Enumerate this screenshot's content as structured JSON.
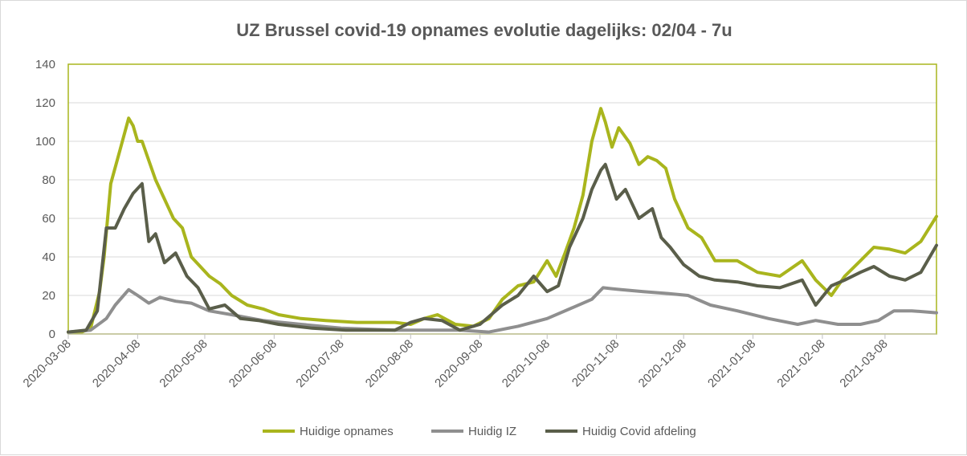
{
  "chart_data": {
    "type": "line",
    "title": "UZ Brussel covid-19 opnames evolutie dagelijks: 02/04 - 7u",
    "xlabel": "",
    "ylabel": "",
    "ylim": [
      0,
      140
    ],
    "yticks": [
      "0",
      "20",
      "40",
      "60",
      "80",
      "100",
      "120",
      "140"
    ],
    "xlim": [
      "2020-03-08",
      "2021-03-31"
    ],
    "xticks": [
      "2020-03-08",
      "2020-04-08",
      "2020-05-08",
      "2020-06-08",
      "2020-07-08",
      "2020-08-08",
      "2020-09-08",
      "2020-10-08",
      "2020-11-08",
      "2020-12-08",
      "2021-01-08",
      "2021-02-08",
      "2021-03-08"
    ],
    "grid": "horizontal",
    "legend_position": "bottom",
    "series": [
      {
        "name": "Huidige opnames",
        "color": "#a9b51d",
        "x": [
          "2020-03-08",
          "2020-03-14",
          "2020-03-18",
          "2020-03-22",
          "2020-03-24",
          "2020-03-27",
          "2020-03-31",
          "2020-04-04",
          "2020-04-06",
          "2020-04-08",
          "2020-04-10",
          "2020-04-13",
          "2020-04-16",
          "2020-04-20",
          "2020-04-24",
          "2020-04-28",
          "2020-05-02",
          "2020-05-06",
          "2020-05-10",
          "2020-05-15",
          "2020-05-20",
          "2020-05-27",
          "2020-06-03",
          "2020-06-10",
          "2020-06-20",
          "2020-07-01",
          "2020-07-15",
          "2020-08-01",
          "2020-08-08",
          "2020-08-14",
          "2020-08-20",
          "2020-08-28",
          "2020-09-05",
          "2020-09-12",
          "2020-09-18",
          "2020-09-25",
          "2020-10-02",
          "2020-10-08",
          "2020-10-12",
          "2020-10-16",
          "2020-10-20",
          "2020-10-24",
          "2020-10-28",
          "2020-11-01",
          "2020-11-03",
          "2020-11-06",
          "2020-11-09",
          "2020-11-14",
          "2020-11-18",
          "2020-11-22",
          "2020-11-26",
          "2020-11-30",
          "2020-12-04",
          "2020-12-10",
          "2020-12-16",
          "2020-12-22",
          "2021-01-01",
          "2021-01-10",
          "2021-01-20",
          "2021-01-30",
          "2021-02-05",
          "2021-02-12",
          "2021-02-18",
          "2021-02-25",
          "2021-03-03",
          "2021-03-10",
          "2021-03-17",
          "2021-03-24",
          "2021-03-31"
        ],
        "values": [
          1,
          1,
          3,
          22,
          40,
          78,
          95,
          112,
          108,
          100,
          100,
          90,
          80,
          70,
          60,
          55,
          40,
          35,
          30,
          26,
          20,
          15,
          13,
          10,
          8,
          7,
          6,
          6,
          5,
          8,
          10,
          5,
          4,
          8,
          18,
          25,
          27,
          38,
          30,
          42,
          55,
          72,
          100,
          117,
          110,
          97,
          107,
          99,
          88,
          92,
          90,
          86,
          70,
          55,
          50,
          38,
          38,
          32,
          30,
          38,
          28,
          20,
          30,
          38,
          45,
          44,
          42,
          48,
          61
        ]
      },
      {
        "name": "Huidig IZ",
        "color": "#8f8f8f",
        "x": [
          "2020-03-08",
          "2020-03-18",
          "2020-03-25",
          "2020-03-29",
          "2020-04-04",
          "2020-04-08",
          "2020-04-13",
          "2020-04-18",
          "2020-04-25",
          "2020-05-02",
          "2020-05-10",
          "2020-05-20",
          "2020-06-03",
          "2020-06-20",
          "2020-07-08",
          "2020-08-01",
          "2020-08-15",
          "2020-08-30",
          "2020-09-12",
          "2020-09-25",
          "2020-10-08",
          "2020-10-20",
          "2020-10-28",
          "2020-11-02",
          "2020-11-10",
          "2020-11-20",
          "2020-12-01",
          "2020-12-10",
          "2020-12-20",
          "2021-01-01",
          "2021-01-15",
          "2021-01-28",
          "2021-02-05",
          "2021-02-15",
          "2021-02-25",
          "2021-03-05",
          "2021-03-12",
          "2021-03-20",
          "2021-03-31"
        ],
        "values": [
          1,
          2,
          8,
          15,
          23,
          20,
          16,
          19,
          17,
          16,
          12,
          10,
          7,
          5,
          3,
          2,
          2,
          2,
          1,
          4,
          8,
          14,
          18,
          24,
          23,
          22,
          21,
          20,
          15,
          12,
          8,
          5,
          7,
          5,
          5,
          7,
          12,
          12,
          11
        ]
      },
      {
        "name": "Huidig Covid afdeling",
        "color": "#5a5e4a",
        "x": [
          "2020-03-08",
          "2020-03-16",
          "2020-03-21",
          "2020-03-25",
          "2020-03-29",
          "2020-04-02",
          "2020-04-06",
          "2020-04-10",
          "2020-04-13",
          "2020-04-16",
          "2020-04-20",
          "2020-04-25",
          "2020-04-30",
          "2020-05-05",
          "2020-05-10",
          "2020-05-17",
          "2020-05-24",
          "2020-06-01",
          "2020-06-10",
          "2020-06-25",
          "2020-07-10",
          "2020-08-01",
          "2020-08-08",
          "2020-08-14",
          "2020-08-22",
          "2020-08-30",
          "2020-09-08",
          "2020-09-18",
          "2020-09-25",
          "2020-10-02",
          "2020-10-08",
          "2020-10-13",
          "2020-10-18",
          "2020-10-24",
          "2020-10-28",
          "2020-11-01",
          "2020-11-03",
          "2020-11-08",
          "2020-11-12",
          "2020-11-18",
          "2020-11-24",
          "2020-11-28",
          "2020-12-02",
          "2020-12-08",
          "2020-12-15",
          "2020-12-22",
          "2021-01-01",
          "2021-01-10",
          "2021-01-20",
          "2021-01-30",
          "2021-02-05",
          "2021-02-12",
          "2021-02-18",
          "2021-02-25",
          "2021-03-03",
          "2021-03-10",
          "2021-03-17",
          "2021-03-24",
          "2021-03-31"
        ],
        "values": [
          1,
          2,
          12,
          55,
          55,
          65,
          73,
          78,
          48,
          52,
          37,
          42,
          30,
          24,
          13,
          15,
          8,
          7,
          5,
          3,
          2,
          2,
          6,
          8,
          7,
          2,
          5,
          15,
          20,
          30,
          22,
          25,
          45,
          60,
          75,
          85,
          88,
          70,
          75,
          60,
          65,
          50,
          45,
          36,
          30,
          28,
          27,
          25,
          24,
          28,
          15,
          25,
          28,
          32,
          35,
          30,
          28,
          32,
          46
        ]
      }
    ]
  }
}
